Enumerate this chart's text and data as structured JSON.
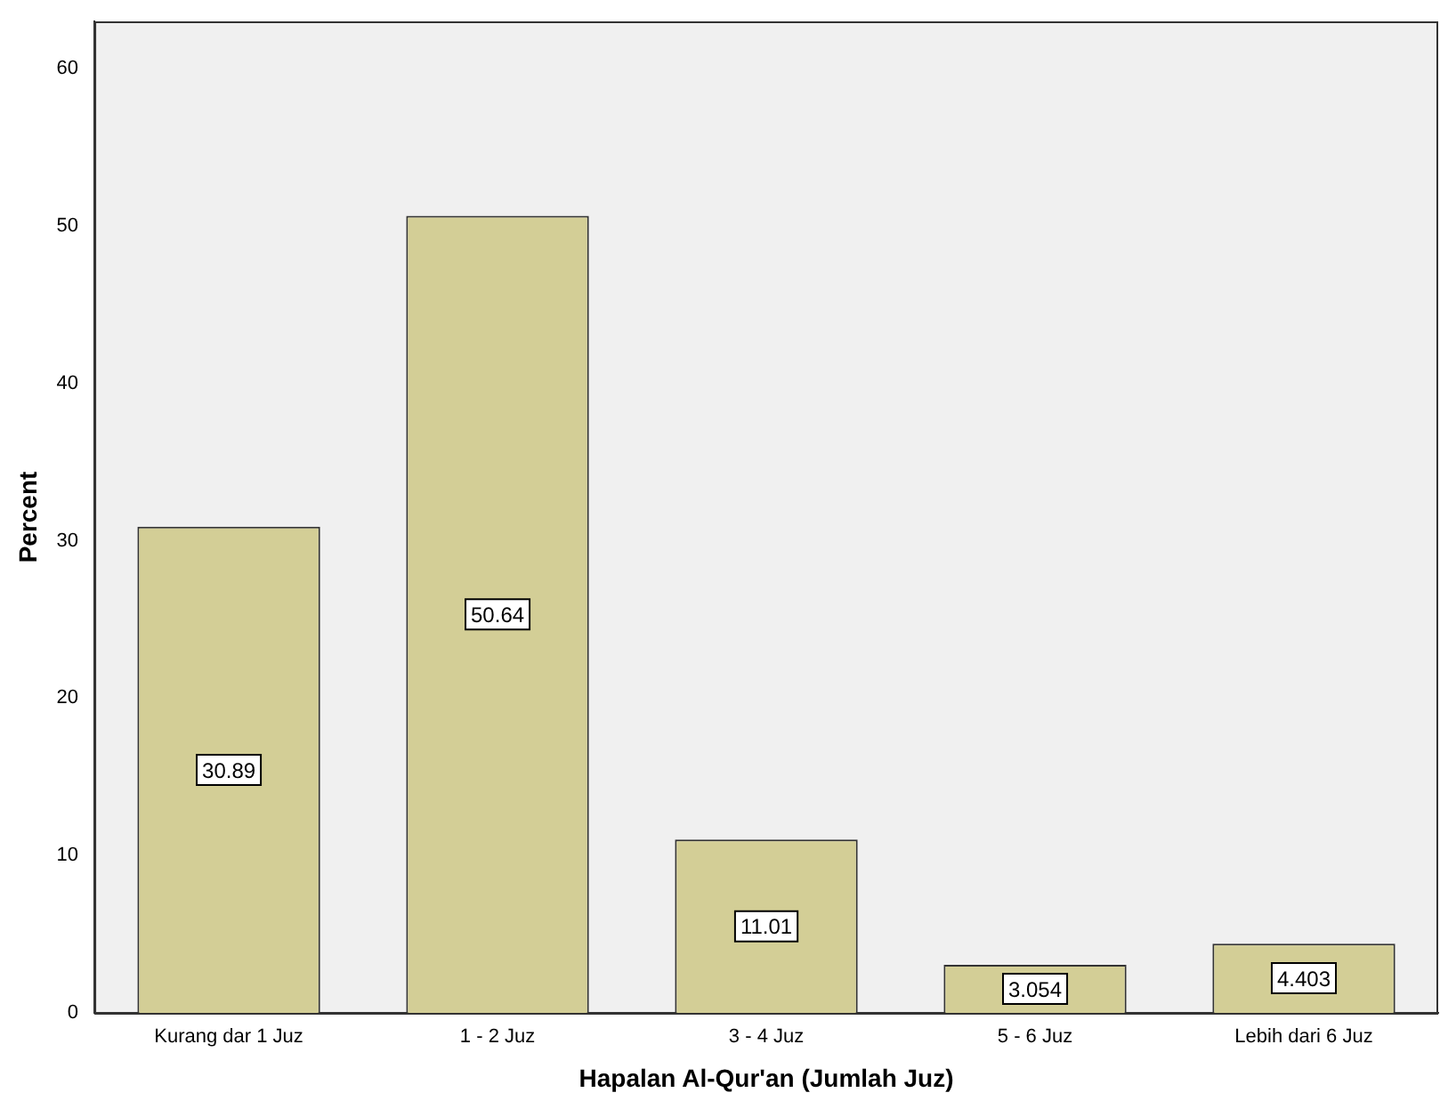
{
  "chart_data": {
    "type": "bar",
    "xlabel": "Hapalan Al-Qur'an (Jumlah Juz)",
    "ylabel": "Percent",
    "categories": [
      "Kurang dar 1 Juz",
      "1 - 2 Juz",
      "3 - 4 Juz",
      "5 - 6 Juz",
      "Lebih dari 6 Juz"
    ],
    "values": [
      30.89,
      50.64,
      11.01,
      3.054,
      4.403
    ],
    "color": "#d3ce96",
    "ylim": [
      0,
      63
    ],
    "yticks": [
      0,
      10,
      20,
      30,
      40,
      50,
      60
    ],
    "grid": false,
    "legend": false,
    "data_labels": true
  }
}
